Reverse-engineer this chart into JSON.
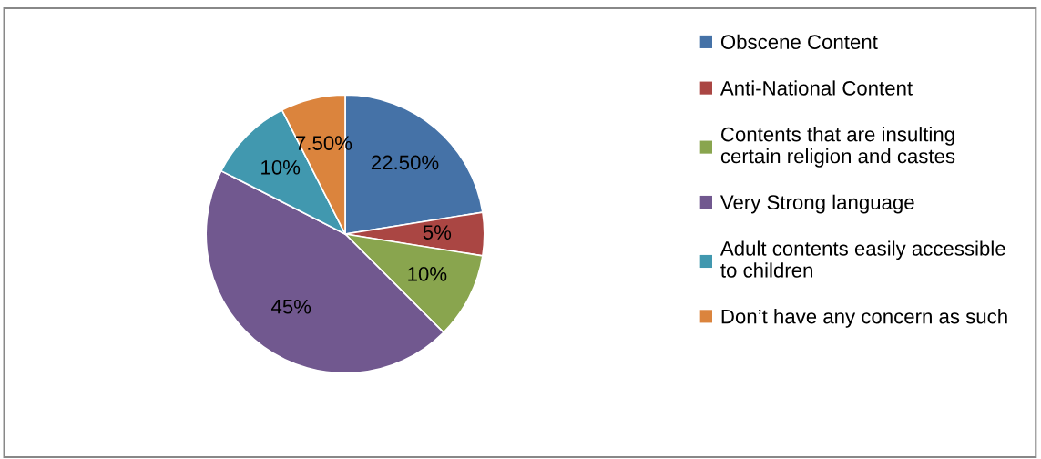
{
  "chart_data": {
    "type": "pie",
    "categories": [
      "Obscene Content",
      "Anti-National Content",
      "Contents that are insulting\ncertain religion and castes",
      "Very Strong language",
      "Adult contents easily accessible\nto children",
      "Don’t have any concern as such"
    ],
    "values": [
      22.5,
      5,
      10,
      45,
      10,
      7.5
    ],
    "value_labels": [
      "22.50%",
      "5%",
      "10%",
      "45%",
      "10%",
      "7.50%"
    ],
    "colors": [
      "#4572a7",
      "#aa4643",
      "#89a54e",
      "#71588f",
      "#4198af",
      "#db843d"
    ],
    "legend": "right"
  }
}
